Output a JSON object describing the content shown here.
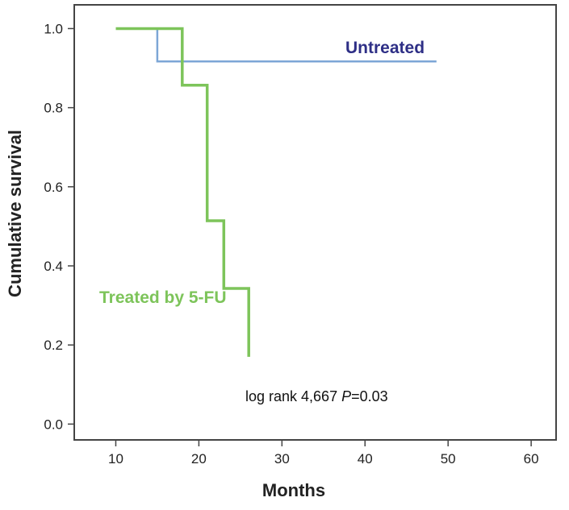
{
  "chart_data": {
    "type": "line",
    "subtype": "kaplan-meier step",
    "xlabel": "Months",
    "ylabel": "Cumulative survival",
    "xlim": [
      5,
      63
    ],
    "ylim": [
      -0.04,
      1.06
    ],
    "x_ticks": [
      10,
      20,
      30,
      40,
      50,
      60
    ],
    "y_ticks": [
      0.0,
      0.2,
      0.4,
      0.6,
      0.8,
      1.0
    ],
    "x_tick_labels": [
      "10",
      "20",
      "30",
      "40",
      "50",
      "60"
    ],
    "y_tick_labels": [
      "0.0",
      "0.2",
      "0.4",
      "0.6",
      "0.8",
      "1.0"
    ],
    "grid": false,
    "series": [
      {
        "name": "Untreated",
        "color": "#7da6d6",
        "label_color": "#2e2f86",
        "steps": [
          [
            10,
            1.0
          ],
          [
            15,
            1.0
          ],
          [
            15,
            0.917
          ],
          [
            48.6,
            0.917
          ]
        ]
      },
      {
        "name": "Treated by 5-FU",
        "color": "#7dc45a",
        "label_color": "#7dc45a",
        "steps": [
          [
            10,
            1.0
          ],
          [
            18,
            1.0
          ],
          [
            18,
            0.857
          ],
          [
            21,
            0.857
          ],
          [
            21,
            0.514
          ],
          [
            23,
            0.514
          ],
          [
            23,
            0.343
          ],
          [
            26,
            0.343
          ],
          [
            26,
            0.17
          ]
        ]
      }
    ],
    "annotation": {
      "prefix": "log rank 4,667 ",
      "p_symbol": "P",
      "suffix": "=0.03"
    }
  }
}
